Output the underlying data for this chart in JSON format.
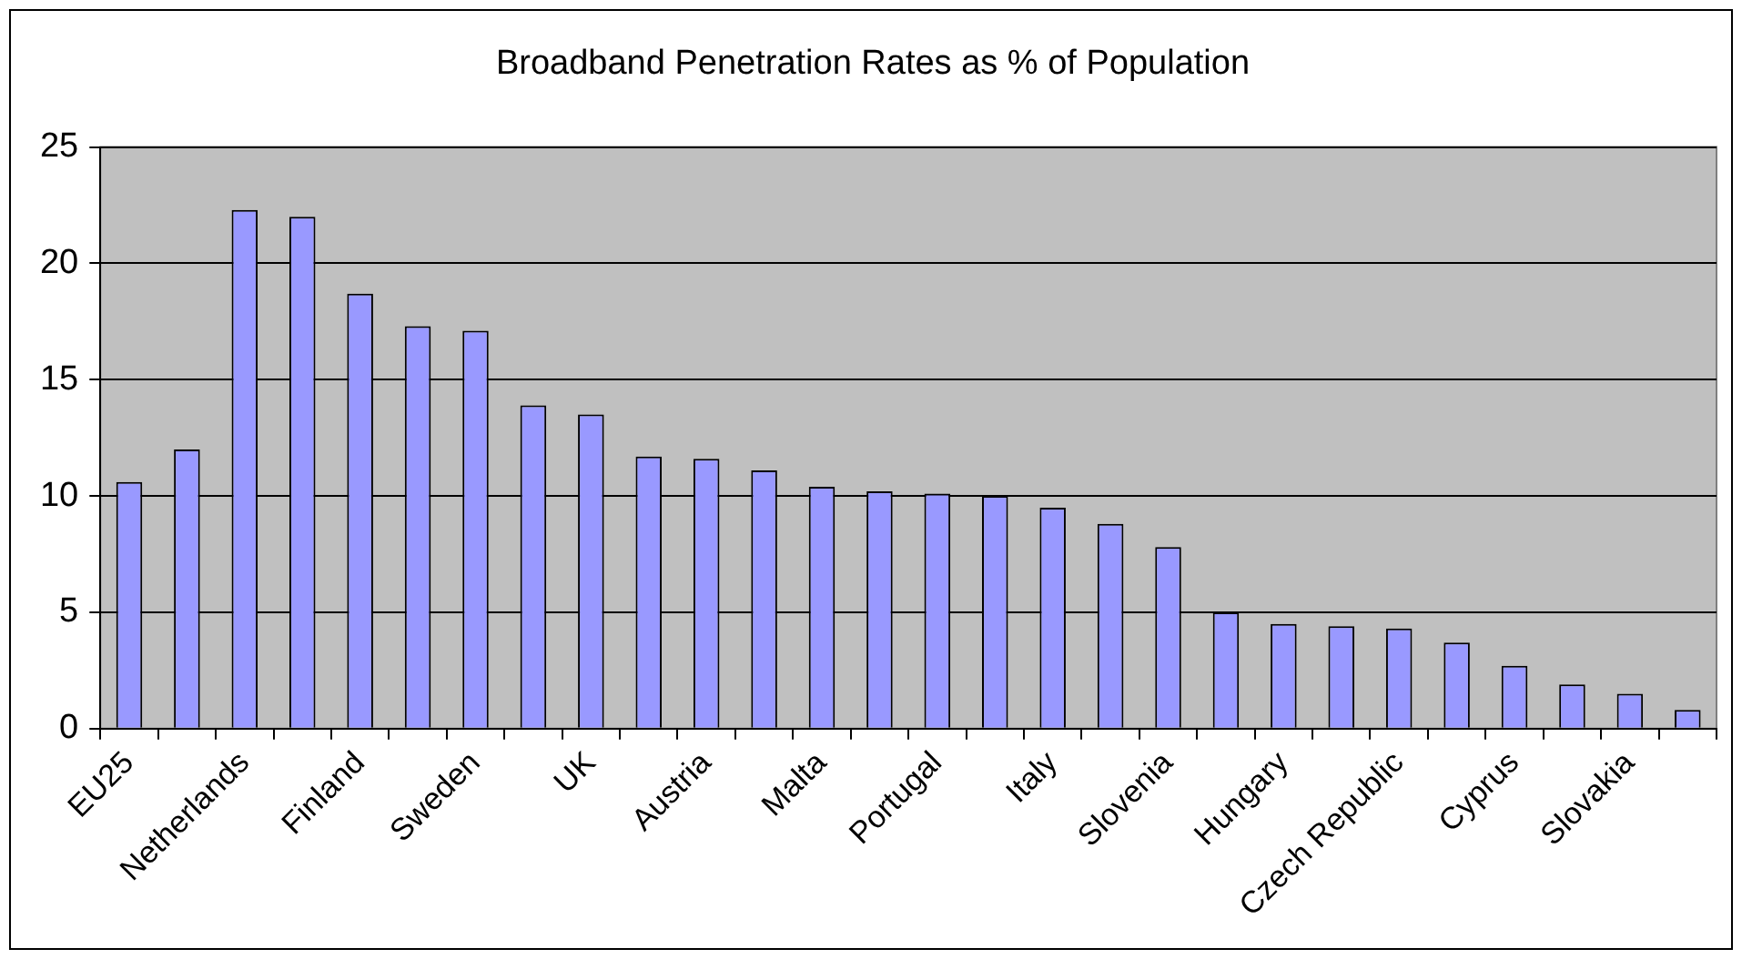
{
  "chart_data": {
    "type": "bar",
    "title": "Broadband Penetration Rates as % of Population",
    "categories": [
      "EU25",
      null,
      "Netherlands",
      null,
      "Finland",
      null,
      "Sweden",
      null,
      "UK",
      null,
      "Austria",
      null,
      "Malta",
      null,
      "Portugal",
      null,
      "Italy",
      null,
      "Slovenia",
      null,
      "Hungary",
      null,
      "Czech Republic",
      null,
      "Cyprus",
      null,
      "Slovakia",
      null
    ],
    "values": [
      10.6,
      12.0,
      22.3,
      22.0,
      18.7,
      17.3,
      17.1,
      13.9,
      13.5,
      11.7,
      11.6,
      11.1,
      10.4,
      10.2,
      10.1,
      10.0,
      9.5,
      8.8,
      7.8,
      5.0,
      4.5,
      4.4,
      4.3,
      3.7,
      2.7,
      1.9,
      1.5,
      0.8
    ],
    "color": "#9999ff",
    "ylim": [
      0,
      25
    ],
    "yticks": [
      0,
      5,
      10,
      15,
      20,
      25
    ],
    "grid": "y",
    "legend": false
  }
}
